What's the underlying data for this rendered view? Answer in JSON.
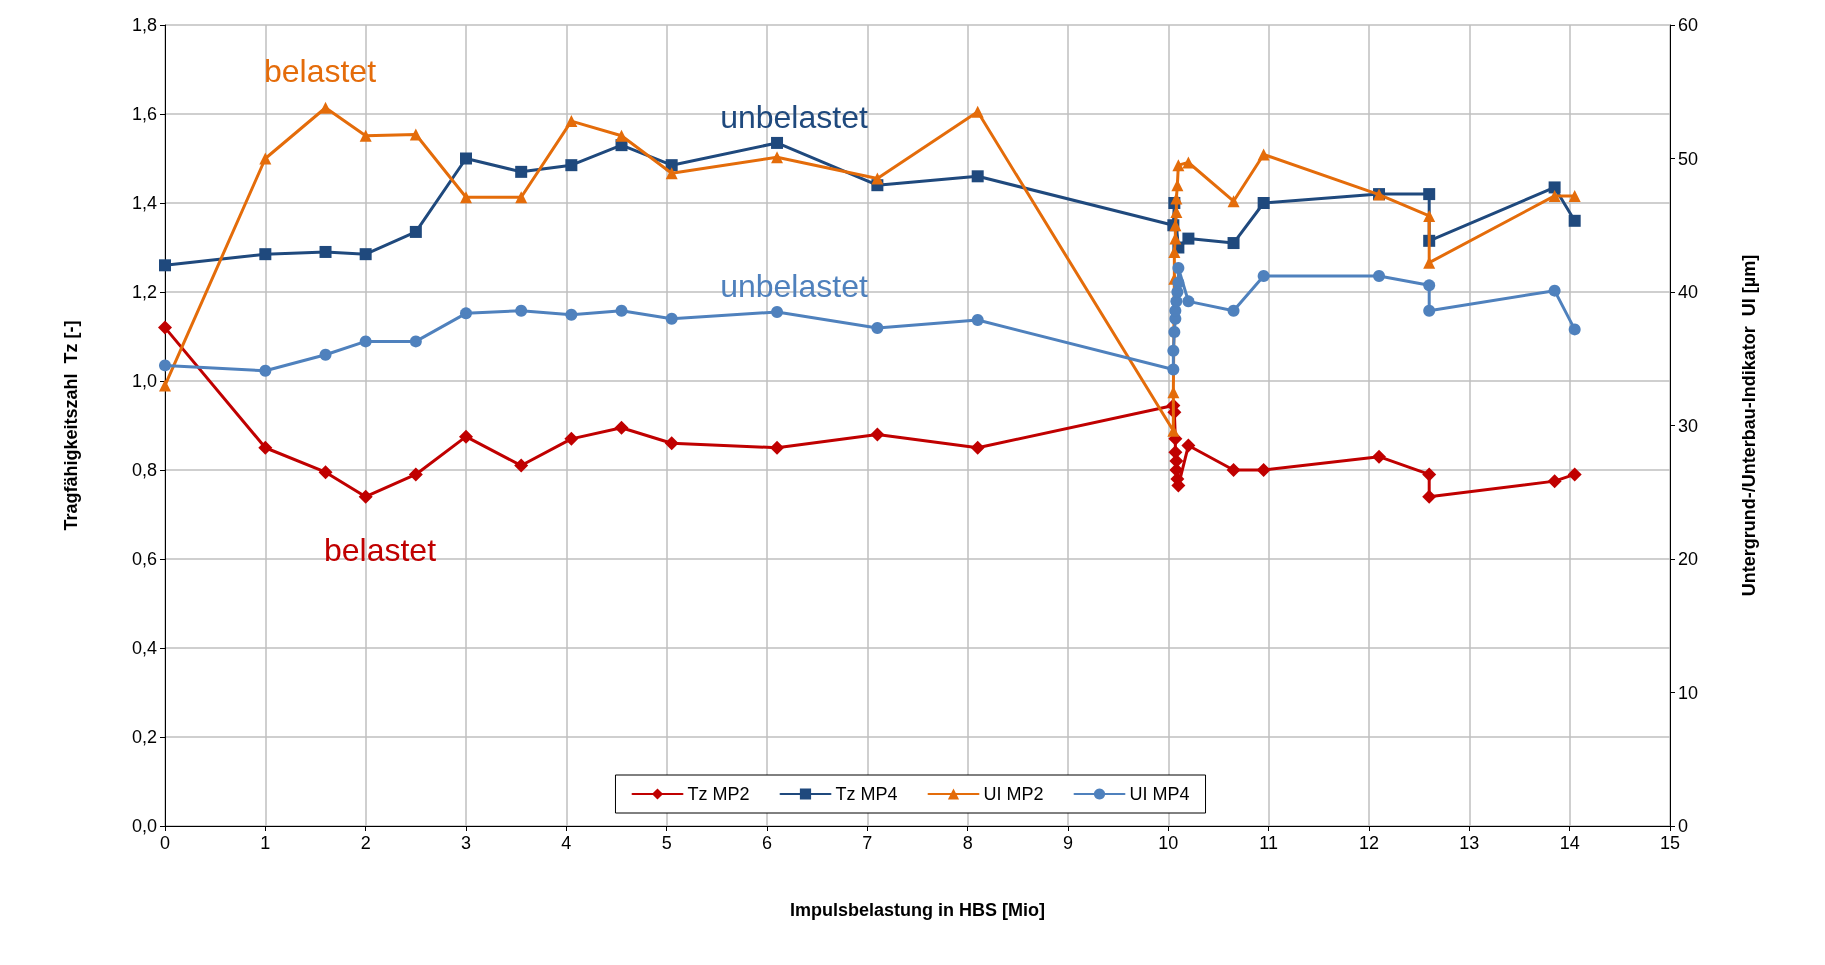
{
  "chart_data": {
    "type": "line",
    "xlabel": "Impulsbelastung in HBS [Mio]",
    "ylabel": "Tragfähigkeitszahl  Tz [-]",
    "y2label": "Untergrund-/Unterbau-Indikator  UI [µm]",
    "xlim": [
      0,
      15
    ],
    "xticks": [
      0,
      1,
      2,
      3,
      4,
      5,
      6,
      7,
      8,
      9,
      10,
      11,
      12,
      13,
      14,
      15
    ],
    "ylim": [
      0,
      1.8
    ],
    "yticks": [
      {
        "value": 0,
        "label": "0,0"
      },
      {
        "value": 0.2,
        "label": "0,2"
      },
      {
        "value": 0.4,
        "label": "0,4"
      },
      {
        "value": 0.6,
        "label": "0,6"
      },
      {
        "value": 0.8,
        "label": "0,8"
      },
      {
        "value": 1.0,
        "label": "1,0"
      },
      {
        "value": 1.2,
        "label": "1,2"
      },
      {
        "value": 1.4,
        "label": "1,4"
      },
      {
        "value": 1.6,
        "label": "1,6"
      },
      {
        "value": 1.8,
        "label": "1,8"
      }
    ],
    "y2lim": [
      0,
      60
    ],
    "y2ticks": [
      0,
      10,
      20,
      30,
      40,
      50,
      60
    ],
    "grid": true,
    "legend": "bottom",
    "line_style": "solid",
    "series": [
      {
        "name": "Tz MP2",
        "color": "#c00000",
        "marker": "diamond",
        "x": [
          0,
          1.0,
          1.6,
          2.0,
          2.5,
          3.0,
          3.55,
          4.05,
          4.55,
          5.05,
          6.1,
          7.1,
          8.1,
          10.05,
          10.06,
          10.07,
          10.07,
          10.08,
          10.08,
          10.09,
          10.1,
          10.2,
          10.65,
          10.95,
          12.1,
          12.6,
          12.6,
          13.85,
          14.05
        ],
        "values": [
          1.12,
          0.85,
          0.795,
          0.74,
          0.79,
          0.875,
          0.81,
          0.87,
          0.895,
          0.86,
          0.85,
          0.88,
          0.85,
          0.945,
          0.93,
          0.87,
          0.84,
          0.82,
          0.8,
          0.78,
          0.765,
          0.855,
          0.8,
          0.8,
          0.83,
          0.79,
          0.74,
          0.775,
          0.79
        ]
      },
      {
        "name": "Tz MP4",
        "color": "#1f497d",
        "marker": "square",
        "x": [
          0,
          1.0,
          1.6,
          2.0,
          2.5,
          3.0,
          3.55,
          4.05,
          4.55,
          5.05,
          6.1,
          7.1,
          8.1,
          10.05,
          10.06,
          10.1,
          10.2,
          10.65,
          10.95,
          12.1,
          12.6,
          12.6,
          13.85,
          14.05
        ],
        "values": [
          1.26,
          1.285,
          1.29,
          1.285,
          1.335,
          1.5,
          1.47,
          1.485,
          1.53,
          1.485,
          1.535,
          1.44,
          1.46,
          1.35,
          1.4,
          1.3,
          1.32,
          1.31,
          1.4,
          1.42,
          1.42,
          1.315,
          1.435,
          1.36
        ]
      },
      {
        "name": "UI MP2",
        "color": "#e46c0a",
        "marker": "triangle",
        "axis": "y2",
        "x": [
          0,
          1.0,
          1.6,
          2.0,
          2.5,
          3.0,
          3.55,
          4.05,
          4.55,
          5.05,
          6.1,
          7.1,
          8.1,
          10.05,
          10.05,
          10.06,
          10.06,
          10.07,
          10.07,
          10.08,
          10.08,
          10.09,
          10.1,
          10.2,
          10.65,
          10.95,
          12.1,
          12.6,
          12.6,
          13.85,
          14.05
        ],
        "values": [
          33,
          50,
          53.8,
          51.7,
          51.8,
          47.1,
          47.1,
          52.8,
          51.7,
          48.9,
          50.1,
          48.5,
          53.5,
          29.6,
          32.5,
          41,
          43,
          44,
          45,
          46,
          47,
          48,
          49.5,
          49.7,
          46.8,
          50.3,
          47.3,
          45.7,
          42.2,
          47.2,
          47.2
        ]
      },
      {
        "name": "UI MP4",
        "color": "#4f81bd",
        "marker": "circle",
        "axis": "y2",
        "x": [
          0,
          1.0,
          1.6,
          2.0,
          2.5,
          3.0,
          3.55,
          4.05,
          4.55,
          5.05,
          6.1,
          7.1,
          8.1,
          10.05,
          10.05,
          10.06,
          10.07,
          10.07,
          10.08,
          10.09,
          10.1,
          10.1,
          10.2,
          10.65,
          10.95,
          12.1,
          12.6,
          12.6,
          13.85,
          14.05
        ],
        "values": [
          34.5,
          34.1,
          35.3,
          36.3,
          36.3,
          38.4,
          38.6,
          38.3,
          38.6,
          38.0,
          38.5,
          37.3,
          37.9,
          34.2,
          35.6,
          37,
          38,
          38.6,
          39.3,
          40,
          40.7,
          41.8,
          39.3,
          38.6,
          41.2,
          41.2,
          40.5,
          38.6,
          40.1,
          37.2
        ]
      }
    ],
    "annotations": [
      "belastet",
      "unbelastet",
      "unbelastet",
      "belastet"
    ]
  }
}
